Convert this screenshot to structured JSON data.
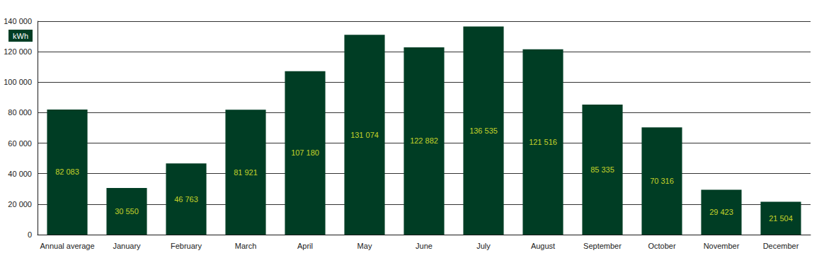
{
  "chart_data": {
    "type": "bar",
    "ylabel": "kWh",
    "categories": [
      "Annual average",
      "January",
      "February",
      "March",
      "April",
      "May",
      "June",
      "July",
      "August",
      "September",
      "October",
      "November",
      "December"
    ],
    "values": [
      82083,
      30550,
      46763,
      81921,
      107180,
      131074,
      122882,
      136535,
      121516,
      85335,
      70316,
      29423,
      21504
    ],
    "value_labels": [
      "82 083",
      "30 550",
      "46 763",
      "81 921",
      "107 180",
      "131 074",
      "122 882",
      "136 535",
      "121 516",
      "85 335",
      "70 316",
      "29 423",
      "21 504"
    ],
    "color": "#003d24",
    "ylim": [
      0,
      140000
    ],
    "yticks": [
      0,
      {
        "value": 20000,
        "label": "20 000"
      },
      {
        "value": 40000,
        "label": "40 000"
      },
      {
        "value": 60000,
        "label": "60 000"
      },
      {
        "value": 80000,
        "label": "80 000"
      },
      {
        "value": 100000,
        "label": "100 000"
      },
      {
        "value": 120000,
        "label": "120 000"
      },
      {
        "value": 140000,
        "label": "140 000"
      }
    ],
    "grid": true,
    "data_labels": true
  }
}
